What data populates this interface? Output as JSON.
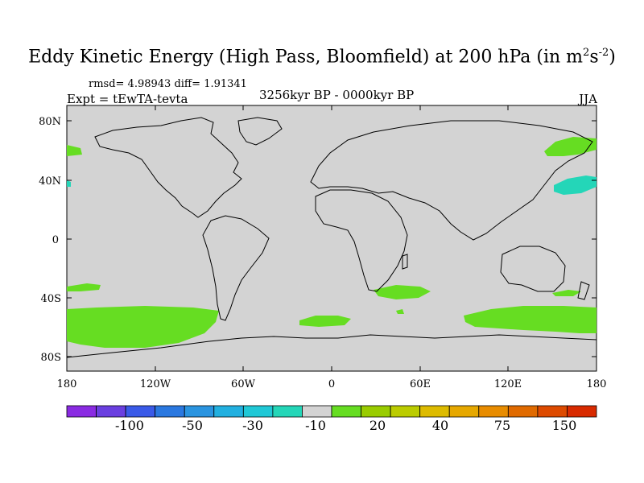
{
  "title": {
    "main": "Eddy Kinetic Energy (High Pass, Bloomfield) at 200 hPa (in m",
    "sup1": "2",
    "mid": "s",
    "sup2": "-2",
    "close": ")"
  },
  "stats": "rmsd= 4.98943 diff= 1.91341",
  "expt": "Expt = tEwTA-tevta",
  "period": "3256kyr BP - 0000kyr BP",
  "season": "JJA",
  "map": {
    "ocean_color": "#d3d3d3",
    "lat_ticks": [
      "80N",
      "40N",
      "0",
      "40S",
      "80S"
    ],
    "lon_ticks": [
      "180",
      "120W",
      "60W",
      "0",
      "60E",
      "120E",
      "180"
    ]
  },
  "colorbar": {
    "colors": [
      "#8a2be2",
      "#6a3fe0",
      "#3a5ae8",
      "#2a78e0",
      "#2a94e0",
      "#22b0e0",
      "#20c8d6",
      "#24d6b8",
      "#d3d3d3",
      "#66dd22",
      "#99cc00",
      "#bbcc00",
      "#ddbb00",
      "#e6a800",
      "#e88c00",
      "#e06a00",
      "#dd4a00",
      "#d82a00"
    ],
    "labels": [
      "-100",
      "-50",
      "-30",
      "-10",
      "20",
      "40",
      "75",
      "150"
    ]
  }
}
